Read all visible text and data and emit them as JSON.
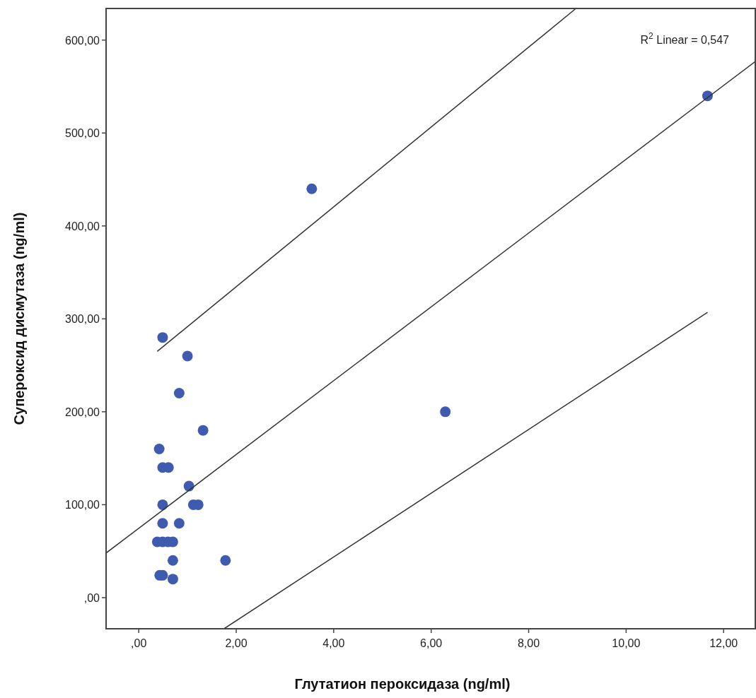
{
  "chart_data": {
    "type": "scatter",
    "xlabel": "Глутатион пероксидаза (ng/ml)",
    "ylabel": "Супероксид дисмутаза (ng/ml)",
    "annotations": [
      "R$^{2}$ Linear = 0,547"
    ],
    "xlim": [
      -0.67,
      12.65
    ],
    "ylim": [
      -33.5,
      634
    ],
    "xticks": [
      {
        "value": 0,
        "label": ",00"
      },
      {
        "value": 2,
        "label": "2,00"
      },
      {
        "value": 4,
        "label": "4,00"
      },
      {
        "value": 6,
        "label": "6,00"
      },
      {
        "value": 8,
        "label": "8,00"
      },
      {
        "value": 10,
        "label": "10,00"
      },
      {
        "value": 12,
        "label": "12,00"
      }
    ],
    "yticks": [
      {
        "value": 0,
        "label": ",00"
      },
      {
        "value": 100,
        "label": "100,00"
      },
      {
        "value": 200,
        "label": "200,00"
      },
      {
        "value": 300,
        "label": "300,00"
      },
      {
        "value": 400,
        "label": "400,00"
      },
      {
        "value": 500,
        "label": "500,00"
      },
      {
        "value": 600,
        "label": "600,00"
      }
    ],
    "grid": false,
    "marker": "circle",
    "series": [
      {
        "color": "#3f5bb0",
        "x": [
          11.67,
          3.55,
          6.29,
          0.49,
          1.0,
          0.83,
          1.32,
          0.42,
          0.49,
          0.61,
          1.03,
          0.49,
          1.12,
          1.22,
          0.49,
          0.83,
          0.38,
          0.49,
          0.6,
          0.7,
          1.78,
          0.7,
          0.43,
          0.49,
          0.7
        ],
        "values": [
          540,
          440,
          200,
          280,
          260,
          220,
          180,
          160,
          140,
          140,
          120,
          100,
          100,
          100,
          80,
          80,
          60,
          60,
          60,
          60,
          40,
          40,
          24,
          24,
          20
        ]
      },
      {
        "type": "line",
        "color": "#333333",
        "marker": "none",
        "line_style": "solid",
        "x": [
          -0.67,
          12.65
        ],
        "values": [
          48,
          577
        ]
      },
      {
        "type": "line",
        "color": "#333333",
        "marker": "none",
        "line_style": "solid",
        "x": [
          0.38,
          8.97
        ],
        "values": [
          265,
          634
        ]
      },
      {
        "type": "line",
        "color": "#333333",
        "marker": "none",
        "line_style": "solid",
        "x": [
          1.75,
          11.67
        ],
        "values": [
          -33.5,
          307
        ]
      }
    ]
  }
}
